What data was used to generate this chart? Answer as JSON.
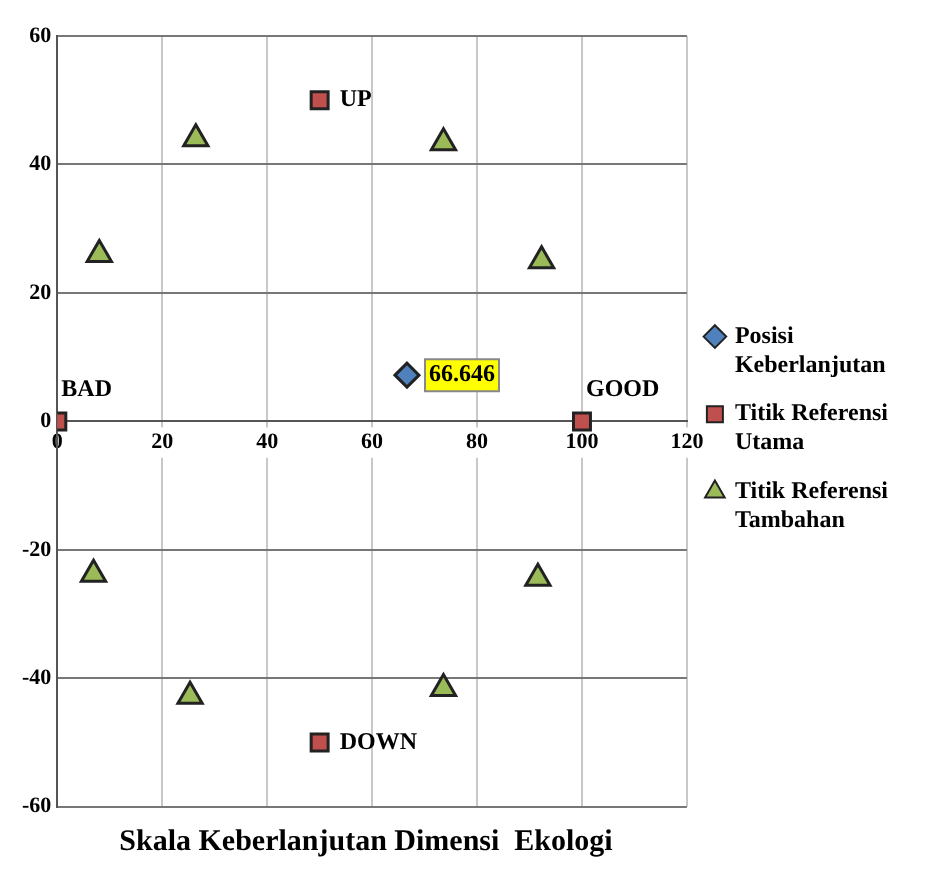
{
  "chart_data": {
    "type": "scatter",
    "xlabel": "Skala Keberlanjutan Dimensi  Ekologi",
    "xlim": [
      0,
      120
    ],
    "xticks": [
      0,
      20,
      40,
      60,
      80,
      100,
      120
    ],
    "ylim": [
      -60,
      60
    ],
    "yticks": [
      -60,
      -40,
      -20,
      0,
      20,
      40,
      60
    ],
    "grid": true,
    "legend": "right",
    "series": [
      {
        "name": "Posisi Keberlanjutan",
        "color": "#4f81bd",
        "marker": "diamond",
        "x": [
          66.646
        ],
        "values": [
          7.2
        ]
      },
      {
        "name": "Titik Referensi Utama",
        "color": "#c0504d",
        "marker": "square",
        "x": [
          0,
          100,
          50,
          50
        ],
        "values": [
          0,
          0,
          50,
          -50
        ]
      },
      {
        "name": "Titik Referensi Tambahan",
        "color": "#9bbb59",
        "marker": "triangle",
        "x": [
          8,
          26.4,
          73.6,
          92.3,
          6.9,
          25.3,
          73.6,
          91.6
        ],
        "values": [
          26,
          44,
          43.4,
          25,
          -23.8,
          -42.8,
          -41.6,
          -24.4
        ]
      }
    ],
    "annotations": [
      {
        "text": "66.646",
        "x": 66.646,
        "y": 7.2
      },
      {
        "text": "BAD",
        "x": 0,
        "y": 0
      },
      {
        "text": "GOOD",
        "x": 100,
        "y": 0
      },
      {
        "text": "UP",
        "x": 50,
        "y": 50
      },
      {
        "text": "DOWN",
        "x": 50,
        "y": -50
      }
    ]
  }
}
